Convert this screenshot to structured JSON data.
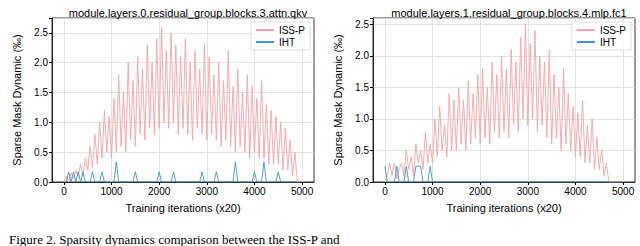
{
  "chart_data": [
    {
      "type": "line",
      "title": "module.layers.0.residual_group.blocks.3.attn.qkv",
      "x_label": "Training iterations (x20)",
      "y_label": "Sparse Mask Dynamic (‰)",
      "x": [
        0,
        50,
        100,
        150,
        200,
        250,
        300,
        350,
        400,
        450,
        500,
        550,
        600,
        650,
        700,
        750,
        800,
        850,
        900,
        950,
        1000,
        1050,
        1100,
        1150,
        1200,
        1250,
        1300,
        1350,
        1400,
        1450,
        1500,
        1550,
        1600,
        1650,
        1700,
        1750,
        1800,
        1850,
        1900,
        1950,
        2000,
        2050,
        2100,
        2150,
        2200,
        2250,
        2300,
        2350,
        2400,
        2450,
        2500,
        2550,
        2600,
        2650,
        2700,
        2750,
        2800,
        2850,
        2900,
        2950,
        3000,
        3050,
        3100,
        3150,
        3200,
        3250,
        3300,
        3350,
        3400,
        3450,
        3500,
        3550,
        3600,
        3650,
        3700,
        3750,
        3800,
        3850,
        3900,
        3950,
        4000,
        4050,
        4100,
        4150,
        4200,
        4250,
        4300,
        4350,
        4400,
        4450,
        4500,
        4550,
        4600,
        4650,
        4700,
        4750,
        4800,
        4850,
        4900,
        4950
      ],
      "series": [
        {
          "name": "ISS-P",
          "color": "#f7a3a3",
          "values": [
            0,
            0.1,
            0,
            0.15,
            0.05,
            0.2,
            0.1,
            0.3,
            0.1,
            0.4,
            0.2,
            0.6,
            0.25,
            0.8,
            0.3,
            1.0,
            0.4,
            1.2,
            0.5,
            1.1,
            0.4,
            1.4,
            0.5,
            1.8,
            0.6,
            1.5,
            0.5,
            2.0,
            0.7,
            1.7,
            0.6,
            2.1,
            0.8,
            1.9,
            0.7,
            2.3,
            0.9,
            2.0,
            0.8,
            2.4,
            0.9,
            2.6,
            1.0,
            2.2,
            0.9,
            2.5,
            1.0,
            2.3,
            0.8,
            2.1,
            0.9,
            2.4,
            0.8,
            2.0,
            0.7,
            2.2,
            0.9,
            1.9,
            0.8,
            2.3,
            0.7,
            2.1,
            0.8,
            1.8,
            0.7,
            2.0,
            0.6,
            1.7,
            0.7,
            2.2,
            0.6,
            1.6,
            0.5,
            1.9,
            0.6,
            1.5,
            0.5,
            1.8,
            0.4,
            1.6,
            0.5,
            1.4,
            0.4,
            1.7,
            0.4,
            1.3,
            0.3,
            1.2,
            0.3,
            1.1,
            0.3,
            1.0,
            0.2,
            0.9,
            0.2,
            0.7,
            0.1,
            0.5,
            0,
            0
          ]
        },
        {
          "name": "IHT",
          "color": "#3d96cf",
          "values": [
            0,
            0,
            0.17,
            0,
            0.17,
            0,
            0.17,
            0,
            0.17,
            0,
            0,
            0,
            0.17,
            0,
            0,
            0,
            0.17,
            0,
            0,
            0,
            0,
            0,
            0.34,
            0,
            0,
            0,
            0,
            0,
            0,
            0,
            0.17,
            0,
            0,
            0,
            0,
            0,
            0,
            0,
            0,
            0,
            0.17,
            0,
            0,
            0,
            0,
            0,
            0.17,
            0,
            0,
            0,
            0,
            0,
            0,
            0,
            0,
            0,
            0,
            0,
            0.17,
            0,
            0,
            0,
            0,
            0,
            0.17,
            0,
            0,
            0,
            0,
            0,
            0,
            0,
            0.34,
            0,
            0,
            0,
            0,
            0,
            0,
            0,
            0.17,
            0,
            0,
            0,
            0.34,
            0,
            0,
            0,
            0,
            0,
            0.17,
            0,
            0,
            0,
            0,
            0,
            0,
            0,
            0,
            0
          ]
        }
      ],
      "xlim": [
        -250,
        5250
      ],
      "xticks": [
        0,
        1000,
        2000,
        3000,
        4000,
        5000
      ],
      "ylim": [
        0,
        2.75
      ],
      "yticks": [
        {
          "value": 0,
          "label": "0.0"
        },
        0.5,
        {
          "value": 1,
          "label": "1.0"
        },
        1.5,
        {
          "value": 2,
          "label": "2.0"
        },
        2.5
      ],
      "grid": true,
      "legend": "upper right"
    },
    {
      "type": "line",
      "title": "module.layers.1.residual_group.blocks.4.mlp.fc1",
      "x_label": "Training iterations (x20)",
      "y_label": "Sparse Mask Dynamic (‰)",
      "x": [
        0,
        50,
        100,
        150,
        200,
        250,
        300,
        350,
        400,
        450,
        500,
        550,
        600,
        650,
        700,
        750,
        800,
        850,
        900,
        950,
        1000,
        1050,
        1100,
        1150,
        1200,
        1250,
        1300,
        1350,
        1400,
        1450,
        1500,
        1550,
        1600,
        1650,
        1700,
        1750,
        1800,
        1850,
        1900,
        1950,
        2000,
        2050,
        2100,
        2150,
        2200,
        2250,
        2300,
        2350,
        2400,
        2450,
        2500,
        2550,
        2600,
        2650,
        2700,
        2750,
        2800,
        2850,
        2900,
        2950,
        3000,
        3050,
        3100,
        3150,
        3200,
        3250,
        3300,
        3350,
        3400,
        3450,
        3500,
        3550,
        3600,
        3650,
        3700,
        3750,
        3800,
        3850,
        3900,
        3950,
        4000,
        4050,
        4100,
        4150,
        4200,
        4250,
        4300,
        4350,
        4400,
        4450,
        4500,
        4550,
        4600,
        4650,
        4700,
        4750,
        4800,
        4850,
        4900,
        4950
      ],
      "series": [
        {
          "name": "ISS-P",
          "color": "#f7a3a3",
          "values": [
            0,
            0.1,
            0.3,
            0.1,
            0.3,
            0.05,
            0.2,
            0.3,
            0.1,
            0.5,
            0.2,
            0.4,
            0.1,
            0.6,
            0.3,
            0.5,
            0.2,
            0.8,
            0.3,
            0.6,
            0.3,
            1.0,
            0.4,
            1.2,
            0.5,
            0.9,
            0.4,
            1.4,
            0.5,
            1.3,
            0.5,
            1.5,
            0.6,
            1.3,
            0.5,
            1.6,
            0.6,
            1.4,
            0.7,
            1.7,
            0.6,
            1.8,
            0.7,
            1.5,
            0.6,
            1.9,
            0.8,
            1.7,
            0.7,
            2.0,
            0.8,
            1.8,
            0.7,
            2.1,
            0.9,
            1.9,
            0.8,
            2.3,
            1.0,
            2.5,
            0.9,
            2.2,
            1.0,
            2.4,
            0.8,
            2.0,
            0.9,
            1.9,
            0.7,
            2.1,
            0.6,
            1.7,
            0.7,
            1.5,
            0.5,
            1.8,
            0.6,
            1.4,
            0.5,
            1.2,
            0.4,
            1.1,
            0.4,
            1.3,
            0.3,
            0.9,
            0.3,
            1.0,
            0.2,
            0.7,
            0.2,
            0.5,
            0.1,
            0.3,
            0,
            0,
            0,
            0,
            0,
            0
          ]
        },
        {
          "name": "IHT",
          "color": "#3d96cf",
          "values": [
            0.25,
            0,
            0,
            0,
            0,
            0.25,
            0,
            0,
            0,
            0.25,
            0,
            0,
            0,
            0.25,
            0.25,
            0.25,
            0,
            0,
            0,
            0.25,
            0,
            0,
            0,
            0,
            0,
            0,
            0,
            0,
            0,
            0,
            0,
            0,
            0,
            0,
            0,
            0,
            0,
            0,
            0,
            0,
            0,
            0,
            0,
            0,
            0,
            0,
            0,
            0,
            0,
            0,
            0,
            0,
            0,
            0,
            0,
            0,
            0,
            0,
            0,
            0,
            0,
            0,
            0,
            0,
            0,
            0,
            0,
            0,
            0,
            0,
            0,
            0,
            0,
            0,
            0,
            0,
            0,
            0,
            0,
            0,
            0,
            0,
            0,
            0,
            0,
            0,
            0,
            0,
            0,
            0,
            0,
            0,
            0,
            0,
            0,
            0,
            0,
            0,
            0,
            0
          ]
        }
      ],
      "xlim": [
        -250,
        5250
      ],
      "xticks": [
        0,
        1000,
        2000,
        3000,
        4000,
        5000
      ],
      "ylim": [
        0,
        2.6
      ],
      "yticks": [
        {
          "value": 0,
          "label": "0.0"
        },
        0.5,
        {
          "value": 1,
          "label": "1.0"
        },
        1.5,
        {
          "value": 2,
          "label": "2.0"
        },
        2.5
      ],
      "grid": true,
      "legend": "upper right"
    }
  ],
  "caption": "Figure 2. Sparsity dynamics comparison between the ISS-P and"
}
